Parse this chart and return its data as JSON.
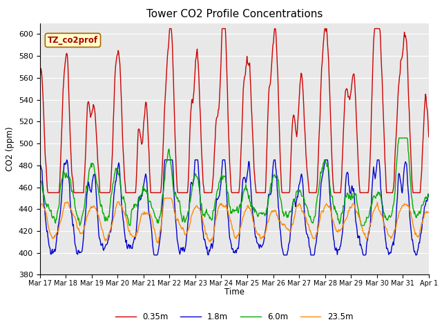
{
  "title": "Tower CO2 Profile Concentrations",
  "xlabel": "Time",
  "ylabel": "CO2 (ppm)",
  "ylim": [
    380,
    610
  ],
  "yticks": [
    380,
    400,
    420,
    440,
    460,
    480,
    500,
    520,
    540,
    560,
    580,
    600
  ],
  "annotation_text": "TZ_co2prof",
  "annotation_color": "#aa0000",
  "annotation_bg": "#ffffcc",
  "annotation_border": "#aa6600",
  "plot_bg": "#e8e8e8",
  "fig_bg": "#ffffff",
  "line_colors": {
    "0.35m": "#cc0000",
    "1.8m": "#0000cc",
    "6.0m": "#00aa00",
    "23.5m": "#ff8800"
  },
  "line_width": 1.0,
  "legend_labels": [
    "0.35m",
    "1.8m",
    "6.0m",
    "23.5m"
  ],
  "xtick_labels": [
    "Mar 17",
    "Mar 18",
    "Mar 19",
    "Mar 20",
    "Mar 21",
    "Mar 22",
    "Mar 23",
    "Mar 24",
    "Mar 25",
    "Mar 26",
    "Mar 27",
    "Mar 28",
    "Mar 29",
    "Mar 30",
    "Mar 31",
    "Apr 1"
  ]
}
